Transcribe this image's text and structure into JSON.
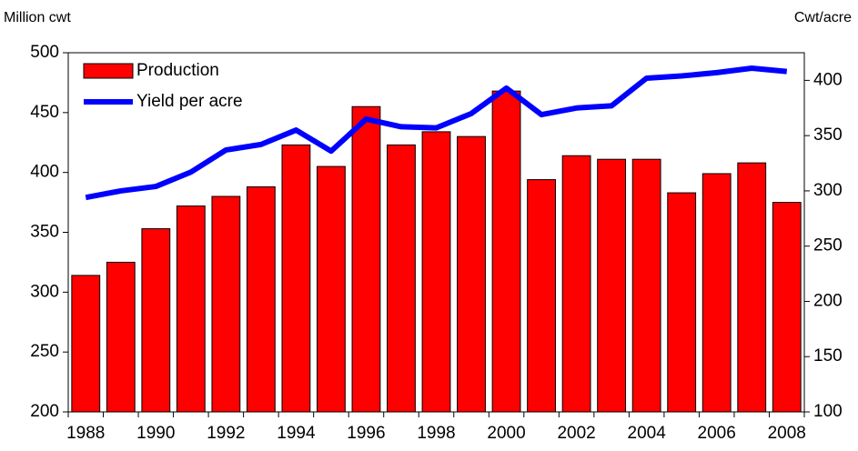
{
  "chart_data": {
    "type": "bar-line",
    "y_axis_label": "Million cwt",
    "y2_axis_label": "Cwt/acre",
    "categories": [
      "1988",
      null,
      "1990",
      null,
      "1992",
      null,
      "1994",
      null,
      "1996",
      null,
      "1998",
      null,
      "2000",
      null,
      "2002",
      null,
      "2004",
      null,
      "2006",
      null,
      "2008"
    ],
    "series": [
      {
        "name": "Production",
        "type": "bar",
        "color": "#ff0000",
        "axis": "y",
        "values": [
          314,
          325,
          353,
          372,
          380,
          388,
          423,
          405,
          455,
          423,
          434,
          430,
          468,
          394,
          414,
          411,
          411,
          383,
          399,
          408,
          375
        ]
      },
      {
        "name": "Yield per acre",
        "type": "line",
        "color": "#0000ff",
        "axis": "y2",
        "values": [
          294,
          300,
          304,
          317,
          337,
          342,
          355,
          336,
          365,
          358,
          357,
          370,
          393,
          369,
          375,
          377,
          402,
          404,
          407,
          411,
          408
        ]
      }
    ],
    "ylim": [
      200,
      500
    ],
    "yticks": [
      200,
      250,
      300,
      350,
      400,
      450,
      500
    ],
    "y2lim": [
      100,
      425
    ],
    "y2ticks": [
      100,
      150,
      200,
      250,
      300,
      350,
      400
    ],
    "legend": "upper-left"
  }
}
